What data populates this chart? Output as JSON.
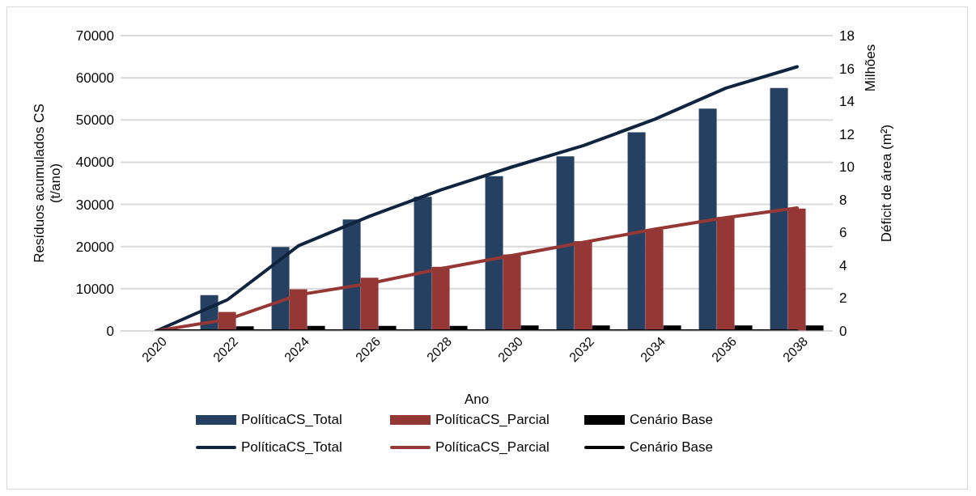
{
  "chart_data": {
    "type": "bar",
    "xlabel": "Ano",
    "ylabel": "Resíduos acumulados CS\n(t/ano)",
    "y2label": "Déficit de área (m²)",
    "annotations": [
      "Milhões"
    ],
    "categories": [
      "2020",
      "2022",
      "2024",
      "2026",
      "2028",
      "2030",
      "2032",
      "2034",
      "2036",
      "2038"
    ],
    "series": [
      {
        "name": "PolíticaCS_Total",
        "color": "#264061",
        "values": [
          0,
          8500,
          19900,
          26400,
          31800,
          36700,
          41400,
          47100,
          52700,
          57600
        ]
      },
      {
        "name": "PolíticaCS_Parcial",
        "color": "#953735",
        "values": [
          0,
          4500,
          9900,
          12600,
          15200,
          18100,
          21300,
          24000,
          27000,
          29000
        ]
      },
      {
        "name": "Cenário Base",
        "color": "#000000",
        "values": [
          0,
          1100,
          1200,
          1200,
          1200,
          1300,
          1300,
          1300,
          1300,
          1300
        ]
      },
      {
        "name": "PolíticaCS_Total",
        "type": "line",
        "axis": "y2",
        "color": "#0f243e",
        "values": [
          0,
          1.9,
          5.2,
          7.0,
          8.6,
          10.0,
          11.3,
          12.9,
          14.8,
          16.1
        ]
      },
      {
        "name": "PolíticaCS_Parcial",
        "type": "line",
        "axis": "y2",
        "color": "#953735",
        "values": [
          0,
          0.7,
          2.2,
          2.9,
          3.8,
          4.6,
          5.4,
          6.2,
          6.9,
          7.5
        ]
      },
      {
        "name": "Cenário Base",
        "type": "line",
        "axis": "y2",
        "color": "#000000",
        "values": [
          0,
          0,
          0,
          0,
          0,
          0,
          0,
          0,
          0,
          0
        ]
      }
    ],
    "ylim": [
      0,
      70000
    ],
    "yticks": [
      0,
      10000,
      20000,
      30000,
      40000,
      50000,
      60000,
      70000
    ],
    "y2lim": [
      0,
      18
    ],
    "y2ticks": [
      0,
      2,
      4,
      6,
      8,
      10,
      12,
      14,
      16,
      18
    ],
    "grid": "y",
    "legend": "bottom",
    "marker": "none",
    "line_style": "solid"
  }
}
